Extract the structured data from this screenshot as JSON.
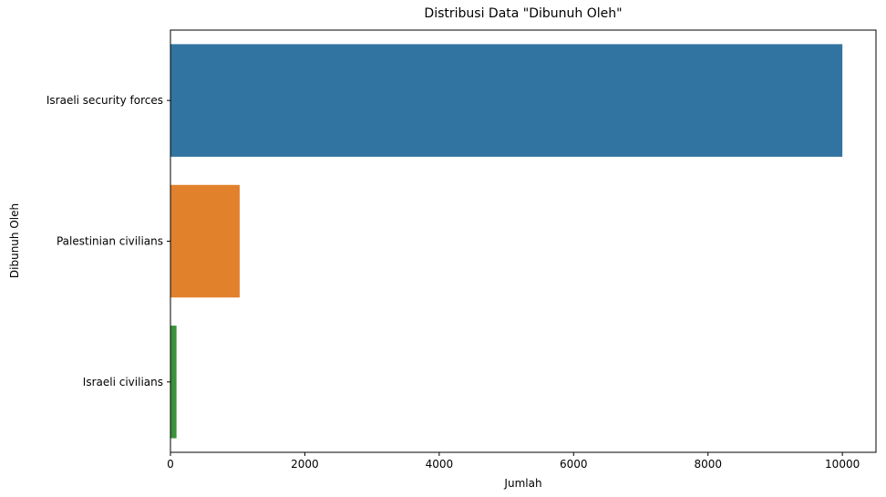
{
  "chart_data": {
    "type": "bar",
    "orientation": "horizontal",
    "title": "Distribusi Data \"Dibunuh Oleh\"",
    "xlabel": "Jumlah",
    "ylabel": "Dibunuh Oleh",
    "categories": [
      "Israeli security forces",
      "Palestinian civilians",
      "Israeli civilians"
    ],
    "values": [
      10000,
      1030,
      90
    ],
    "colors": [
      "#3274a1",
      "#e1812c",
      "#3a923a"
    ],
    "xlim": [
      0,
      10500
    ],
    "xticks": [
      0,
      2000,
      4000,
      6000,
      8000,
      10000
    ],
    "xtick_labels": [
      "0",
      "2000",
      "4000",
      "6000",
      "8000",
      "10000"
    ],
    "grid": false,
    "legend": "none"
  }
}
